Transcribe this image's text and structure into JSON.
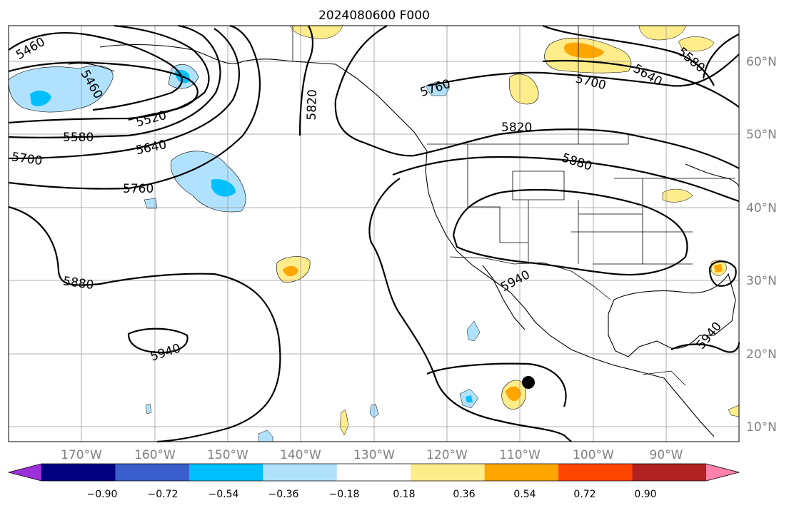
{
  "title": "2024080600 F000",
  "map": {
    "lat_labels": [
      "60°N",
      "50°N",
      "40°N",
      "30°N",
      "20°N",
      "10°N"
    ],
    "lon_labels": [
      "170°W",
      "160°W",
      "150°W",
      "140°W",
      "130°W",
      "120°W",
      "110°W",
      "100°W",
      "90°W"
    ],
    "contour_labels": [
      "5460",
      "5460",
      "5520",
      "5580",
      "5640",
      "5700",
      "5760",
      "5820",
      "5760",
      "5700",
      "5640",
      "5580",
      "5820",
      "5880",
      "5880",
      "5940",
      "5940",
      "5940"
    ]
  },
  "colorbar": {
    "ticks": [
      "−0.90",
      "−0.72",
      "−0.54",
      "−0.36",
      "−0.18",
      "0.18",
      "0.36",
      "0.54",
      "0.72",
      "0.90"
    ],
    "colors": [
      "#9b30d9",
      "#000080",
      "#3a5fcd",
      "#00bfff",
      "#b0e2ff",
      "#ffffff",
      "#ffec8b",
      "#ffa500",
      "#ff4500",
      "#b22222",
      "#ff82ab"
    ]
  }
}
